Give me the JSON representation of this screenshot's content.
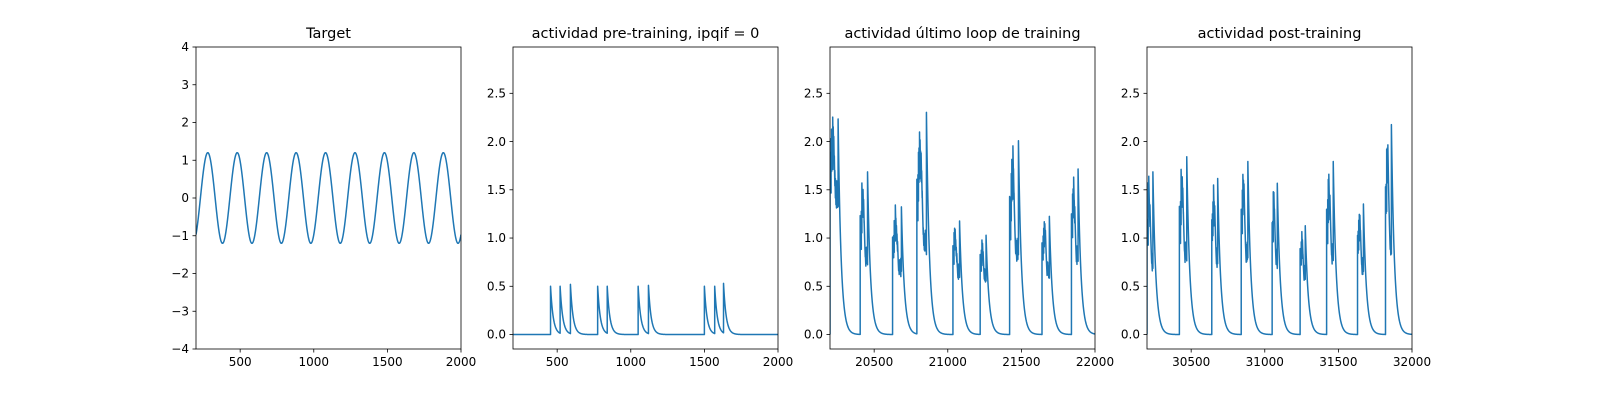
{
  "figure": {
    "panels": [
      "target",
      "pre",
      "last",
      "post"
    ]
  },
  "chart_data": [
    {
      "id": "target",
      "type": "line",
      "title": "Target",
      "xlabel": "",
      "ylabel": "",
      "xlim": [
        200,
        2000
      ],
      "ylim": [
        -4,
        4
      ],
      "xticks": [
        500,
        1000,
        1500,
        2000
      ],
      "xtick_labels": [
        "500",
        "1000",
        "1500",
        "2000"
      ],
      "yticks": [
        -4,
        -3,
        -2,
        -1,
        0,
        1,
        2,
        3,
        4
      ],
      "ytick_labels": [
        "−4",
        "−3",
        "−2",
        "−1",
        "0",
        "1",
        "2",
        "3",
        "4"
      ],
      "grid": false,
      "color": "#1f77b4",
      "series": [
        {
          "kind": "sine",
          "amplitude": 1.2,
          "period": 200,
          "phase_x": 230,
          "x_range": [
            200,
            2000
          ]
        }
      ]
    },
    {
      "id": "pre",
      "type": "line",
      "title": "actividad pre-training, ipqif = 0",
      "xlabel": "",
      "ylabel": "",
      "xlim": [
        200,
        2000
      ],
      "ylim": [
        -0.15,
        2.98
      ],
      "xticks": [
        500,
        1000,
        1500,
        2000
      ],
      "xtick_labels": [
        "500",
        "1000",
        "1500",
        "2000"
      ],
      "yticks": [
        0.0,
        0.5,
        1.0,
        1.5,
        2.0,
        2.5
      ],
      "ytick_labels": [
        "0.0",
        "0.5",
        "1.0",
        "1.5",
        "2.0",
        "2.5"
      ],
      "grid": false,
      "color": "#1f77b4",
      "series": [
        {
          "kind": "spikes",
          "decay": 18,
          "x_range": [
            200,
            2000
          ],
          "spikes": [
            [
              455,
              0.5
            ],
            [
              520,
              0.5
            ],
            [
              590,
              0.52
            ],
            [
              775,
              0.5
            ],
            [
              840,
              0.5
            ],
            [
              1050,
              0.5
            ],
            [
              1120,
              0.51
            ],
            [
              1500,
              0.5
            ],
            [
              1570,
              0.5
            ],
            [
              1630,
              0.53
            ]
          ]
        }
      ]
    },
    {
      "id": "last",
      "type": "line",
      "title": "actividad último loop de training",
      "xlabel": "",
      "ylabel": "",
      "xlim": [
        20200,
        22000
      ],
      "ylim": [
        -0.15,
        2.98
      ],
      "xticks": [
        20500,
        21000,
        21500,
        22000
      ],
      "xtick_labels": [
        "20500",
        "21000",
        "21500",
        "22000"
      ],
      "yticks": [
        0.0,
        0.5,
        1.0,
        1.5,
        2.0,
        2.5
      ],
      "ytick_labels": [
        "0.0",
        "0.5",
        "1.0",
        "1.5",
        "2.0",
        "2.5"
      ],
      "grid": false,
      "color": "#1f77b4",
      "series": [
        {
          "kind": "bursts",
          "decay": 20,
          "x_range": [
            20200,
            22000
          ],
          "bursts": [
            [
              20200,
              20255,
              1.3,
              2.28
            ],
            [
              20405,
              20455,
              0.5,
              1.72
            ],
            [
              20625,
              20685,
              0.5,
              1.35
            ],
            [
              20790,
              20855,
              0.5,
              2.35
            ],
            [
              21035,
              21080,
              0.5,
              1.2
            ],
            [
              21220,
              21260,
              0.5,
              1.05
            ],
            [
              21420,
              21480,
              0.5,
              2.05
            ],
            [
              21640,
              21690,
              0.5,
              1.25
            ],
            [
              21840,
              21885,
              0.5,
              1.75
            ]
          ]
        }
      ]
    },
    {
      "id": "post",
      "type": "line",
      "title": "actividad post-training",
      "xlabel": "",
      "ylabel": "",
      "xlim": [
        30200,
        32000
      ],
      "ylim": [
        -0.15,
        2.98
      ],
      "xticks": [
        30500,
        31000,
        31500,
        32000
      ],
      "xtick_labels": [
        "30500",
        "31000",
        "31500",
        "32000"
      ],
      "yticks": [
        0.0,
        0.5,
        1.0,
        1.5,
        2.0,
        2.5
      ],
      "ytick_labels": [
        "0.0",
        "0.5",
        "1.0",
        "1.5",
        "2.0",
        "2.5"
      ],
      "grid": false,
      "color": "#1f77b4",
      "series": [
        {
          "kind": "bursts",
          "decay": 20,
          "x_range": [
            30200,
            32000
          ],
          "bursts": [
            [
              30200,
              30240,
              0.4,
              1.72
            ],
            [
              30420,
              30470,
              0.5,
              1.88
            ],
            [
              30640,
              30680,
              0.5,
              1.65
            ],
            [
              30840,
              30885,
              0.5,
              1.83
            ],
            [
              31050,
              31085,
              0.5,
              1.6
            ],
            [
              31240,
              31275,
              0.5,
              1.15
            ],
            [
              31420,
              31465,
              0.5,
              1.83
            ],
            [
              31630,
              31670,
              0.5,
              1.38
            ],
            [
              31820,
              31860,
              0.5,
              2.22
            ]
          ]
        }
      ]
    }
  ]
}
